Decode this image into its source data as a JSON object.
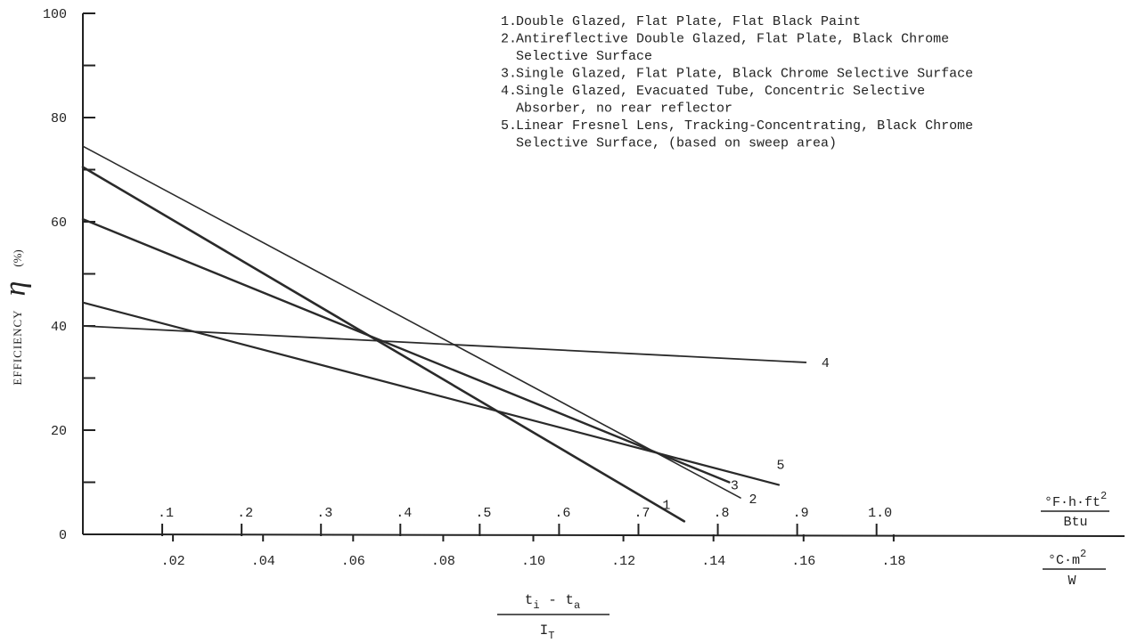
{
  "chart_data": {
    "type": "line",
    "ylabel": "EFFICIENCY",
    "ylabel_symbol": "η",
    "ylabel_unit": "(%)",
    "ylim": [
      0,
      100
    ],
    "y_ticks": [
      "100",
      "80",
      "60",
      "40",
      "20",
      "0"
    ],
    "xlim_si": [
      0,
      0.2
    ],
    "x_ticks_si": [
      ".02",
      ".04",
      ".06",
      ".08",
      ".10",
      ".12",
      ".14",
      ".16",
      ".18"
    ],
    "x_ticks_si_values": [
      0.02,
      0.04,
      0.06,
      0.08,
      0.1,
      0.12,
      0.14,
      0.16,
      0.18
    ],
    "x_ticks_english": [
      ".1",
      ".2",
      ".3",
      ".4",
      ".5",
      ".6",
      ".7",
      ".8",
      ".9",
      "1.0"
    ],
    "x_ticks_english_values": [
      0.1,
      0.2,
      0.3,
      0.4,
      0.5,
      0.6,
      0.7,
      0.8,
      0.9,
      1.0
    ],
    "x_unit_english": {
      "num": "°F·h·ft",
      "sup": "2",
      "den": "Btu"
    },
    "x_unit_si": {
      "num": "°C·m",
      "sup": "2",
      "den": "W"
    },
    "xlabel": {
      "num_a": "t",
      "num_a_sub": "i",
      "minus": "-",
      "num_b": "t",
      "num_b_sub": "a",
      "den": "I",
      "den_sub": "T"
    },
    "legend": [
      {
        "num": "1.",
        "lines": [
          "Double Glazed, Flat Plate, Flat Black Paint"
        ]
      },
      {
        "num": "2.",
        "lines": [
          "Antireflective Double Glazed, Flat Plate, Black Chrome",
          "Selective Surface"
        ]
      },
      {
        "num": "3.",
        "lines": [
          "Single Glazed, Flat Plate, Black Chrome Selective Surface"
        ]
      },
      {
        "num": "4.",
        "lines": [
          "Single Glazed, Evacuated Tube, Concentric Selective",
          "Absorber, no rear reflector"
        ]
      },
      {
        "num": "5.",
        "lines": [
          "Linear Fresnel Lens, Tracking-Concentrating, Black Chrome",
          "Selective Surface, (based on sweep area)"
        ]
      }
    ],
    "series": [
      {
        "name": "1",
        "x": [
          0,
          0.1335
        ],
        "y": [
          70.5,
          2.5
        ]
      },
      {
        "name": "2",
        "x": [
          0,
          0.146
        ],
        "y": [
          74.5,
          7
        ]
      },
      {
        "name": "3",
        "x": [
          0,
          0.1435
        ],
        "y": [
          60.5,
          10
        ]
      },
      {
        "name": "4",
        "x": [
          0,
          0.1605
        ],
        "y": [
          40,
          33
        ]
      },
      {
        "name": "5",
        "x": [
          0,
          0.1545
        ],
        "y": [
          44.5,
          9.5
        ]
      }
    ],
    "series_labels": [
      "1",
      "2",
      "3",
      "4",
      "5"
    ]
  }
}
